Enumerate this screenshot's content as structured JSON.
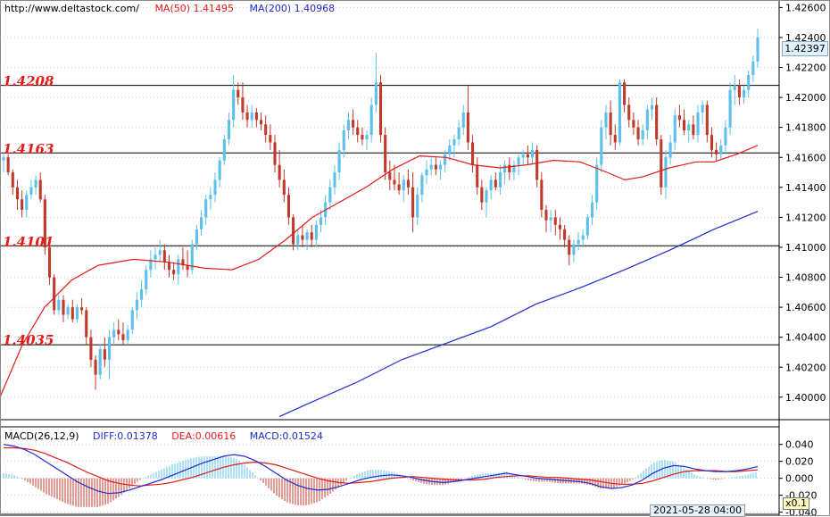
{
  "header": {
    "url": "http://www.deltastock.com/",
    "ma50": "MA(50)  1.41495",
    "ma200": "MA(200)  1.40968"
  },
  "levels": {
    "l1": "1.4208",
    "l2": "1.4163",
    "l3": "1.4101",
    "l4": "1.4035"
  },
  "macd_header": {
    "name": "MACD(26,12,9)",
    "diff": "DIFF:0.01378",
    "dea": "DEA:0.00616",
    "macd": "MACD:0.01524"
  },
  "current_price": "1.42397",
  "time_label": "2021-05-28 04:00",
  "zoom_label": "x0.1",
  "colors": {
    "up": "#5bc0eb",
    "down": "#c0392b",
    "ma50": "#e41b17",
    "ma200": "#1f2bcf",
    "level_text": "#e41b17"
  },
  "chart_data": {
    "type": "candlestick",
    "price_axis": {
      "ticks": [
        "1.42600",
        "1.42400",
        "1.42200",
        "1.42000",
        "1.41800",
        "1.41600",
        "1.41400",
        "1.41200",
        "1.41000",
        "1.40800",
        "1.40600",
        "1.40400",
        "1.40200",
        "1.40000"
      ],
      "range": [
        1.3985,
        1.4265
      ]
    },
    "horizontal_levels": [
      1.4208,
      1.4163,
      1.4101,
      1.4035
    ],
    "ma50_path": [
      [
        0,
        1.4
      ],
      [
        25,
        1.4035
      ],
      [
        50,
        1.406
      ],
      [
        80,
        1.4078
      ],
      [
        110,
        1.4088
      ],
      [
        150,
        1.4092
      ],
      [
        190,
        1.409
      ],
      [
        230,
        1.4086
      ],
      [
        260,
        1.4085
      ],
      [
        290,
        1.4092
      ],
      [
        320,
        1.4105
      ],
      [
        350,
        1.412
      ],
      [
        380,
        1.413
      ],
      [
        410,
        1.414
      ],
      [
        440,
        1.4152
      ],
      [
        470,
        1.4161
      ],
      [
        500,
        1.416
      ],
      [
        530,
        1.4155
      ],
      [
        560,
        1.4153
      ],
      [
        590,
        1.4155
      ],
      [
        620,
        1.4158
      ],
      [
        650,
        1.4157
      ],
      [
        680,
        1.415
      ],
      [
        700,
        1.4145
      ],
      [
        720,
        1.4147
      ],
      [
        750,
        1.4153
      ],
      [
        780,
        1.4157
      ],
      [
        800,
        1.4157
      ],
      [
        825,
        1.4162
      ],
      [
        849,
        1.4168
      ]
    ],
    "ma200_path": [
      [
        313,
        1.3987
      ],
      [
        350,
        1.3997
      ],
      [
        400,
        1.401
      ],
      [
        450,
        1.4025
      ],
      [
        500,
        1.4036
      ],
      [
        550,
        1.4047
      ],
      [
        600,
        1.4062
      ],
      [
        650,
        1.4073
      ],
      [
        700,
        1.4085
      ],
      [
        750,
        1.4098
      ],
      [
        800,
        1.4112
      ],
      [
        849,
        1.4124
      ]
    ],
    "candles": [
      [
        1.4158,
        1.4163,
        1.415,
        1.416
      ],
      [
        1.416,
        1.4162,
        1.4148,
        1.415
      ],
      [
        1.415,
        1.4152,
        1.4135,
        1.414
      ],
      [
        1.414,
        1.4145,
        1.4125,
        1.4132
      ],
      [
        1.4132,
        1.4138,
        1.412,
        1.4125
      ],
      [
        1.4125,
        1.4138,
        1.412,
        1.4135
      ],
      [
        1.4135,
        1.4145,
        1.4132,
        1.414
      ],
      [
        1.414,
        1.4148,
        1.4135,
        1.4145
      ],
      [
        1.4145,
        1.415,
        1.413,
        1.4132
      ],
      [
        1.4132,
        1.4135,
        1.4095,
        1.41
      ],
      [
        1.41,
        1.4102,
        1.4075,
        1.408
      ],
      [
        1.408,
        1.4082,
        1.4055,
        1.4058
      ],
      [
        1.4058,
        1.4068,
        1.4055,
        1.4065
      ],
      [
        1.4065,
        1.4068,
        1.405,
        1.4055
      ],
      [
        1.4055,
        1.4062,
        1.4052,
        1.406
      ],
      [
        1.406,
        1.4065,
        1.405,
        1.4052
      ],
      [
        1.4052,
        1.4062,
        1.405,
        1.406
      ],
      [
        1.406,
        1.4066,
        1.4055,
        1.4058
      ],
      [
        1.4058,
        1.406,
        1.4035,
        1.404
      ],
      [
        1.404,
        1.4045,
        1.402,
        1.4025
      ],
      [
        1.4025,
        1.4028,
        1.4005,
        1.4015
      ],
      [
        1.4015,
        1.4035,
        1.4012,
        1.4032
      ],
      [
        1.4032,
        1.404,
        1.402,
        1.4025
      ],
      [
        1.4025,
        1.4045,
        1.4012,
        1.404
      ],
      [
        1.404,
        1.405,
        1.4035,
        1.4045
      ],
      [
        1.4045,
        1.4052,
        1.4038,
        1.4042
      ],
      [
        1.4042,
        1.405,
        1.4035,
        1.4038
      ],
      [
        1.4038,
        1.4048,
        1.4035,
        1.4045
      ],
      [
        1.4045,
        1.406,
        1.4042,
        1.4058
      ],
      [
        1.4058,
        1.407,
        1.4052,
        1.4065
      ],
      [
        1.4065,
        1.4078,
        1.406,
        1.4072
      ],
      [
        1.4072,
        1.4088,
        1.4068,
        1.4085
      ],
      [
        1.4085,
        1.4098,
        1.408,
        1.4092
      ],
      [
        1.4092,
        1.41,
        1.4085,
        1.4095
      ],
      [
        1.4095,
        1.4105,
        1.409,
        1.4098
      ],
      [
        1.4098,
        1.4102,
        1.4085,
        1.409
      ],
      [
        1.409,
        1.4095,
        1.408,
        1.4085
      ],
      [
        1.4085,
        1.409,
        1.4078,
        1.4082
      ],
      [
        1.4082,
        1.4095,
        1.4075,
        1.4092
      ],
      [
        1.4092,
        1.41,
        1.4085,
        1.4088
      ],
      [
        1.4088,
        1.4098,
        1.408,
        1.4085
      ],
      [
        1.4085,
        1.4105,
        1.4082,
        1.4102
      ],
      [
        1.4102,
        1.4115,
        1.4098,
        1.4112
      ],
      [
        1.4112,
        1.4125,
        1.4108,
        1.412
      ],
      [
        1.412,
        1.4135,
        1.4115,
        1.4132
      ],
      [
        1.4132,
        1.414,
        1.4125,
        1.4135
      ],
      [
        1.4135,
        1.415,
        1.413,
        1.4145
      ],
      [
        1.4145,
        1.416,
        1.414,
        1.4158
      ],
      [
        1.4158,
        1.4175,
        1.4155,
        1.4172
      ],
      [
        1.4172,
        1.419,
        1.4168,
        1.4185
      ],
      [
        1.4185,
        1.4215,
        1.418,
        1.4205
      ],
      [
        1.4205,
        1.421,
        1.4195,
        1.42
      ],
      [
        1.42,
        1.421,
        1.4185,
        1.419
      ],
      [
        1.419,
        1.4195,
        1.418,
        1.4185
      ],
      [
        1.4185,
        1.4195,
        1.418,
        1.419
      ],
      [
        1.419,
        1.4193,
        1.418,
        1.4185
      ],
      [
        1.4185,
        1.419,
        1.4178,
        1.4182
      ],
      [
        1.4182,
        1.4188,
        1.417,
        1.4175
      ],
      [
        1.4175,
        1.4182,
        1.4165,
        1.417
      ],
      [
        1.417,
        1.4175,
        1.415,
        1.4155
      ],
      [
        1.4155,
        1.4165,
        1.414,
        1.4145
      ],
      [
        1.4145,
        1.4152,
        1.413,
        1.4135
      ],
      [
        1.4135,
        1.414,
        1.4115,
        1.412
      ],
      [
        1.412,
        1.4122,
        1.4098,
        1.4102
      ],
      [
        1.4102,
        1.4112,
        1.4098,
        1.4108
      ],
      [
        1.4108,
        1.4115,
        1.41,
        1.4105
      ],
      [
        1.4105,
        1.4112,
        1.4098,
        1.411
      ],
      [
        1.411,
        1.4115,
        1.41,
        1.4105
      ],
      [
        1.4105,
        1.4118,
        1.41,
        1.4115
      ],
      [
        1.4115,
        1.4125,
        1.411,
        1.412
      ],
      [
        1.412,
        1.4135,
        1.4115,
        1.413
      ],
      [
        1.413,
        1.4145,
        1.4125,
        1.414
      ],
      [
        1.414,
        1.4155,
        1.4135,
        1.415
      ],
      [
        1.415,
        1.417,
        1.4145,
        1.4165
      ],
      [
        1.4165,
        1.4182,
        1.416,
        1.4178
      ],
      [
        1.4178,
        1.419,
        1.4172,
        1.4185
      ],
      [
        1.4185,
        1.4192,
        1.4175,
        1.418
      ],
      [
        1.418,
        1.4185,
        1.417,
        1.4175
      ],
      [
        1.4175,
        1.418,
        1.4168,
        1.4172
      ],
      [
        1.4172,
        1.4178,
        1.4165,
        1.4175
      ],
      [
        1.4175,
        1.42,
        1.417,
        1.4195
      ],
      [
        1.4195,
        1.423,
        1.419,
        1.421
      ],
      [
        1.421,
        1.4215,
        1.417,
        1.4175
      ],
      [
        1.4175,
        1.418,
        1.4145,
        1.415
      ],
      [
        1.415,
        1.4158,
        1.4138,
        1.4145
      ],
      [
        1.4145,
        1.4155,
        1.4138,
        1.4142
      ],
      [
        1.4142,
        1.415,
        1.4135,
        1.4138
      ],
      [
        1.4138,
        1.4148,
        1.413,
        1.4145
      ],
      [
        1.4145,
        1.4152,
        1.4135,
        1.414
      ],
      [
        1.414,
        1.415,
        1.411,
        1.412
      ],
      [
        1.412,
        1.414,
        1.4115,
        1.4135
      ],
      [
        1.4135,
        1.415,
        1.413,
        1.4148
      ],
      [
        1.4148,
        1.4158,
        1.4142,
        1.4152
      ],
      [
        1.4152,
        1.416,
        1.4148,
        1.4155
      ],
      [
        1.4155,
        1.416,
        1.4148,
        1.4152
      ],
      [
        1.4152,
        1.4158,
        1.4145,
        1.4155
      ],
      [
        1.4155,
        1.4165,
        1.415,
        1.4162
      ],
      [
        1.4162,
        1.4172,
        1.4158,
        1.4168
      ],
      [
        1.4168,
        1.4175,
        1.416,
        1.4172
      ],
      [
        1.4172,
        1.4185,
        1.4168,
        1.418
      ],
      [
        1.418,
        1.4195,
        1.4175,
        1.419
      ],
      [
        1.419,
        1.4208,
        1.4165,
        1.417
      ],
      [
        1.417,
        1.4175,
        1.415,
        1.4155
      ],
      [
        1.4155,
        1.416,
        1.4135,
        1.414
      ],
      [
        1.414,
        1.4145,
        1.4125,
        1.413
      ],
      [
        1.413,
        1.414,
        1.412,
        1.4138
      ],
      [
        1.4138,
        1.4148,
        1.4132,
        1.4145
      ],
      [
        1.4145,
        1.415,
        1.4138,
        1.414
      ],
      [
        1.414,
        1.4155,
        1.4135,
        1.415
      ],
      [
        1.415,
        1.4158,
        1.4142,
        1.4155
      ],
      [
        1.4155,
        1.416,
        1.4145,
        1.415
      ],
      [
        1.415,
        1.4158,
        1.4145,
        1.4155
      ],
      [
        1.4155,
        1.4162,
        1.4148,
        1.416
      ],
      [
        1.416,
        1.4165,
        1.4155,
        1.4162
      ],
      [
        1.4162,
        1.4168,
        1.4155,
        1.416
      ],
      [
        1.416,
        1.417,
        1.4155,
        1.4165
      ],
      [
        1.4165,
        1.4168,
        1.414,
        1.4145
      ],
      [
        1.4145,
        1.415,
        1.412,
        1.4125
      ],
      [
        1.4125,
        1.4128,
        1.411,
        1.4118
      ],
      [
        1.4118,
        1.4125,
        1.411,
        1.412
      ],
      [
        1.412,
        1.4125,
        1.4108,
        1.4115
      ],
      [
        1.4115,
        1.412,
        1.4105,
        1.4112
      ],
      [
        1.4112,
        1.4115,
        1.41,
        1.4105
      ],
      [
        1.4105,
        1.4108,
        1.4088,
        1.4095
      ],
      [
        1.4095,
        1.4105,
        1.409,
        1.4102
      ],
      [
        1.4102,
        1.411,
        1.4098,
        1.4105
      ],
      [
        1.4105,
        1.4112,
        1.41,
        1.4108
      ],
      [
        1.4108,
        1.4122,
        1.4105,
        1.412
      ],
      [
        1.412,
        1.4135,
        1.4115,
        1.413
      ],
      [
        1.413,
        1.416,
        1.4125,
        1.4155
      ],
      [
        1.4155,
        1.4185,
        1.415,
        1.418
      ],
      [
        1.418,
        1.4195,
        1.4172,
        1.419
      ],
      [
        1.419,
        1.4198,
        1.4168,
        1.4175
      ],
      [
        1.4175,
        1.4182,
        1.4165,
        1.417
      ],
      [
        1.417,
        1.4212,
        1.4168,
        1.421
      ],
      [
        1.421,
        1.4212,
        1.419,
        1.4195
      ],
      [
        1.4195,
        1.42,
        1.418,
        1.4185
      ],
      [
        1.4185,
        1.419,
        1.4175,
        1.418
      ],
      [
        1.418,
        1.4185,
        1.4168,
        1.4172
      ],
      [
        1.4172,
        1.4182,
        1.4168,
        1.4178
      ],
      [
        1.4178,
        1.4195,
        1.4172,
        1.4192
      ],
      [
        1.4192,
        1.42,
        1.4185,
        1.4195
      ],
      [
        1.4195,
        1.42,
        1.4168,
        1.4172
      ],
      [
        1.4172,
        1.4175,
        1.4135,
        1.414
      ],
      [
        1.414,
        1.4165,
        1.4132,
        1.416
      ],
      [
        1.416,
        1.4175,
        1.4155,
        1.417
      ],
      [
        1.417,
        1.4192,
        1.4165,
        1.4188
      ],
      [
        1.4188,
        1.4195,
        1.418,
        1.4185
      ],
      [
        1.4185,
        1.4192,
        1.4175,
        1.4178
      ],
      [
        1.4178,
        1.4185,
        1.417,
        1.4182
      ],
      [
        1.4182,
        1.4188,
        1.4172,
        1.4175
      ],
      [
        1.4175,
        1.4195,
        1.417,
        1.419
      ],
      [
        1.419,
        1.4198,
        1.4182,
        1.4195
      ],
      [
        1.4195,
        1.4198,
        1.417,
        1.4175
      ],
      [
        1.4175,
        1.418,
        1.416,
        1.4165
      ],
      [
        1.4165,
        1.417,
        1.4158,
        1.4162
      ],
      [
        1.4162,
        1.4172,
        1.4158,
        1.4168
      ],
      [
        1.4168,
        1.4185,
        1.4162,
        1.418
      ],
      [
        1.418,
        1.421,
        1.4175,
        1.4205
      ],
      [
        1.4205,
        1.4215,
        1.4195,
        1.4208
      ],
      [
        1.4208,
        1.4212,
        1.4195,
        1.42
      ],
      [
        1.42,
        1.4208,
        1.4196,
        1.4205
      ],
      [
        1.4205,
        1.4218,
        1.42,
        1.4215
      ],
      [
        1.4215,
        1.4228,
        1.421,
        1.4224
      ],
      [
        1.4224,
        1.4246,
        1.422,
        1.424
      ]
    ],
    "macd": {
      "axis_ticks": [
        "0.040",
        "0.020",
        "0.000",
        "-0.020",
        "-0.040"
      ],
      "range": [
        -0.032,
        0.046
      ],
      "diff": [
        0.04,
        0.038,
        0.034,
        0.028,
        0.02,
        0.012,
        0.004,
        -0.004,
        -0.01,
        -0.015,
        -0.018,
        -0.017,
        -0.014,
        -0.01,
        -0.006,
        -0.002,
        0.003,
        0.008,
        0.013,
        0.018,
        0.022,
        0.026,
        0.028,
        0.026,
        0.021,
        0.014,
        0.006,
        -0.002,
        -0.008,
        -0.012,
        -0.014,
        -0.013,
        -0.01,
        -0.006,
        -0.002,
        0.001,
        0.003,
        0.004,
        0.003,
        0.001,
        -0.002,
        -0.004,
        -0.005,
        -0.004,
        -0.002,
        0.0,
        0.002,
        0.004,
        0.006,
        0.004,
        0.002,
        0.0,
        -0.001,
        -0.002,
        -0.003,
        -0.004,
        -0.006,
        -0.01,
        -0.012,
        -0.011,
        -0.008,
        -0.002,
        0.006,
        0.012,
        0.015,
        0.014,
        0.011,
        0.009,
        0.008,
        0.008,
        0.009,
        0.011,
        0.014
      ],
      "dea": [
        0.036,
        0.036,
        0.035,
        0.033,
        0.029,
        0.024,
        0.019,
        0.013,
        0.007,
        0.002,
        -0.003,
        -0.006,
        -0.008,
        -0.009,
        -0.008,
        -0.007,
        -0.005,
        -0.002,
        0.001,
        0.005,
        0.009,
        0.013,
        0.016,
        0.018,
        0.019,
        0.018,
        0.016,
        0.012,
        0.008,
        0.004,
        0.0,
        -0.003,
        -0.005,
        -0.006,
        -0.005,
        -0.004,
        -0.002,
        0.0,
        0.001,
        0.002,
        0.001,
        0.0,
        -0.001,
        -0.002,
        -0.002,
        -0.002,
        -0.001,
        0.001,
        0.002,
        0.003,
        0.003,
        0.002,
        0.001,
        0.001,
        0.0,
        -0.001,
        -0.002,
        -0.004,
        -0.006,
        -0.007,
        -0.007,
        -0.006,
        -0.003,
        0.001,
        0.005,
        0.008,
        0.009,
        0.009,
        0.009,
        0.008,
        0.008,
        0.009,
        0.01
      ],
      "histogram": [
        0.006,
        0.004,
        -0.002,
        -0.01,
        -0.018,
        -0.024,
        -0.03,
        -0.034,
        -0.034,
        -0.034,
        -0.03,
        -0.022,
        -0.012,
        -0.002,
        0.004,
        0.01,
        0.016,
        0.02,
        0.024,
        0.026,
        0.026,
        0.026,
        0.024,
        0.016,
        0.004,
        -0.008,
        -0.02,
        -0.028,
        -0.032,
        -0.032,
        -0.028,
        -0.02,
        -0.01,
        0.0,
        0.006,
        0.01,
        0.01,
        0.008,
        0.004,
        -0.002,
        -0.006,
        -0.008,
        -0.008,
        -0.004,
        0.0,
        0.004,
        0.006,
        0.006,
        0.008,
        0.002,
        -0.002,
        -0.004,
        -0.004,
        -0.006,
        -0.006,
        -0.006,
        -0.008,
        -0.012,
        -0.012,
        -0.008,
        -0.002,
        0.008,
        0.018,
        0.022,
        0.02,
        0.012,
        0.004,
        0.0,
        -0.002,
        0.0,
        0.002,
        0.004,
        0.008
      ]
    }
  }
}
